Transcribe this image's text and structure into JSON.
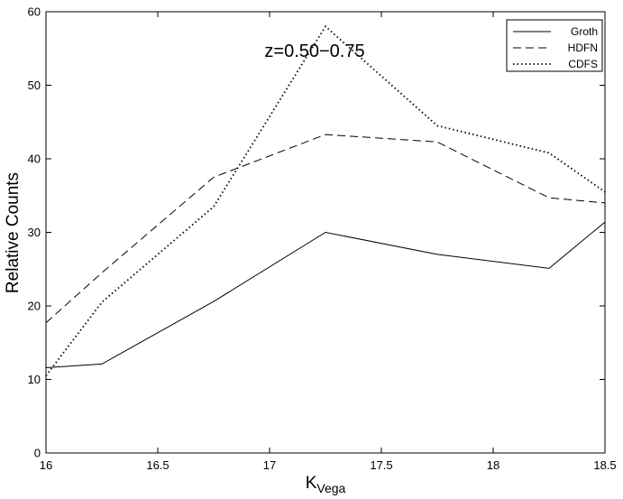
{
  "chart_data": {
    "type": "line",
    "title": "",
    "annotation": "z=0.50−0.75",
    "xlabel_main": "K",
    "xlabel_sub": "Vega",
    "ylabel": "Relative Counts",
    "xlim": [
      16,
      18.5
    ],
    "ylim": [
      0,
      60
    ],
    "xticks": [
      16,
      16.5,
      17,
      17.5,
      18,
      18.5
    ],
    "yticks": [
      0,
      10,
      20,
      30,
      40,
      50,
      60
    ],
    "grid": false,
    "legend_position": "top-right",
    "series": [
      {
        "name": "Groth",
        "style": "solid",
        "x": [
          16,
          16.25,
          16.75,
          17.25,
          17.75,
          18.25,
          18.5
        ],
        "y": [
          11.6,
          12.1,
          20.6,
          30.0,
          27.0,
          25.1,
          31.4
        ]
      },
      {
        "name": "HDFN",
        "style": "dashed",
        "x": [
          16,
          16.25,
          16.75,
          17.25,
          17.75,
          18.25,
          18.5
        ],
        "y": [
          17.7,
          24.5,
          37.5,
          43.3,
          42.3,
          34.7,
          34.0
        ]
      },
      {
        "name": "CDFS",
        "style": "dotted",
        "x": [
          16,
          16.25,
          16.75,
          17.25,
          17.75,
          18.25,
          18.5
        ],
        "y": [
          10.5,
          20.5,
          33.5,
          58.0,
          44.5,
          40.8,
          35.5
        ]
      }
    ]
  }
}
